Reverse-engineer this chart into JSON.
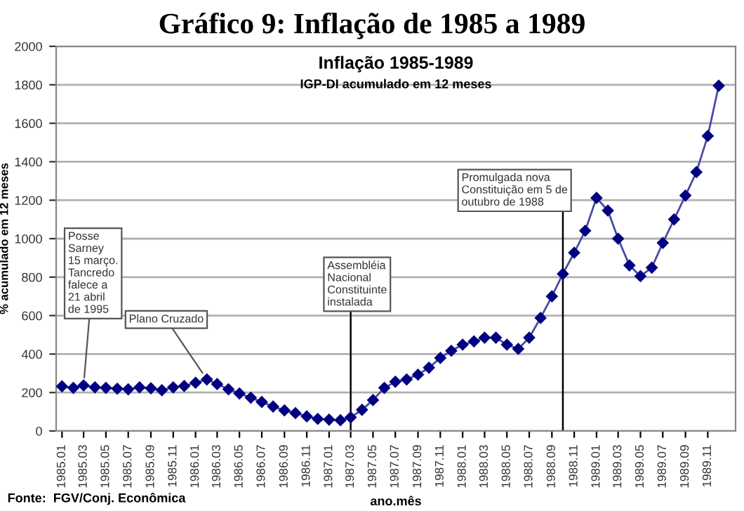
{
  "chart_data": {
    "type": "line",
    "title": "Gráfico 9: Inflação de 1985 a 1989",
    "subtitle": "Inflação 1985-1989",
    "xlabel": "ano.mês",
    "ylabel": "% acumulado em 12 meses",
    "x": [
      "1985-01",
      "1985-02",
      "1985-03",
      "1985-04",
      "1985-05",
      "1985-06",
      "1985-07",
      "1985-08",
      "1985-09",
      "1985-10",
      "1985-11",
      "1985-12",
      "1986-01",
      "1986-02",
      "1986-03",
      "1986-04",
      "1986-05",
      "1986-06",
      "1986-07",
      "1986-08",
      "1986-09",
      "1986-10",
      "1986-11",
      "1986-12",
      "1987-01",
      "1987-02",
      "1987-03",
      "1987-04",
      "1987-05",
      "1987-06",
      "1987-07",
      "1987-08",
      "1987-09",
      "1987-10",
      "1987-11",
      "1987-12",
      "1988-01",
      "1988-02",
      "1988-03",
      "1988-04",
      "1988-05",
      "1988-06",
      "1988-07",
      "1988-08",
      "1988-09",
      "1988-10",
      "1988-11",
      "1988-12",
      "1989-01",
      "1989-02",
      "1989-03",
      "1989-04",
      "1989-05",
      "1989-06",
      "1989-07",
      "1989-08",
      "1989-09",
      "1989-10",
      "1989-11",
      "1989-12"
    ],
    "series": [
      {
        "color": "#000080",
        "values": [
          232,
          224,
          237,
          227,
          224,
          220,
          217,
          227,
          222,
          212,
          227,
          234,
          251,
          268,
          244,
          217,
          195,
          173,
          151,
          127,
          107,
          93,
          76,
          63,
          59,
          56,
          71,
          110,
          161,
          224,
          256,
          268,
          293,
          329,
          380,
          417,
          449,
          466,
          485,
          485,
          449,
          427,
          485,
          588,
          700,
          817,
          927,
          1041,
          1212,
          1146,
          1000,
          861,
          805,
          849,
          978,
          1100,
          1224,
          1346,
          1534,
          1795
        ]
      }
    ],
    "marker": "diamond",
    "line_style": "solid",
    "grid": "y",
    "xlim": [
      "1984-12-16",
      "1990-01-16"
    ],
    "ylim": [
      0,
      2000
    ],
    "yticks": [
      0,
      200,
      400,
      600,
      800,
      1000,
      1200,
      1400,
      1600,
      1800,
      2000
    ],
    "xticks": [
      {
        "value": "1985-01",
        "label": "1985.01"
      },
      {
        "value": "1985-03",
        "label": "1985.03"
      },
      {
        "value": "1985-05",
        "label": "1985.05"
      },
      {
        "value": "1985-07",
        "label": "1985.07"
      },
      {
        "value": "1985-09",
        "label": "1985.09"
      },
      {
        "value": "1985-11",
        "label": "1985.11"
      },
      {
        "value": "1986-01",
        "label": "1986.01"
      },
      {
        "value": "1986-03",
        "label": "1986.03"
      },
      {
        "value": "1986-05",
        "label": "1986.05"
      },
      {
        "value": "1986-07",
        "label": "1986.07"
      },
      {
        "value": "1986-09",
        "label": "1986.09"
      },
      {
        "value": "1986-11",
        "label": "1986.11"
      },
      {
        "value": "1987-01",
        "label": "1987.01"
      },
      {
        "value": "1987-03",
        "label": "1987.03"
      },
      {
        "value": "1987-05",
        "label": "1987.05"
      },
      {
        "value": "1987-07",
        "label": "1987.07"
      },
      {
        "value": "1987-09",
        "label": "1987.09"
      },
      {
        "value": "1987-11",
        "label": "1987.11"
      },
      {
        "value": "1988-01",
        "label": "1988.01"
      },
      {
        "value": "1988-03",
        "label": "1988.03"
      },
      {
        "value": "1988-05",
        "label": "1988.05"
      },
      {
        "value": "1988-07",
        "label": "1988.07"
      },
      {
        "value": "1988-09",
        "label": "1988.09"
      },
      {
        "value": "1988-11",
        "label": "1988.11"
      },
      {
        "value": "1989-01",
        "label": "1989.01"
      },
      {
        "value": "1989-03",
        "label": "1989.03"
      },
      {
        "value": "1989-05",
        "label": "1989.05"
      },
      {
        "value": "1989-07",
        "label": "1989.07"
      },
      {
        "value": "1989-09",
        "label": "1989.09"
      },
      {
        "value": "1989-11",
        "label": "1989.11"
      }
    ],
    "ref_lines": [
      {
        "axis": "x",
        "value": "1987-03",
        "label": "Assembléia\nNacional\nConstituinte\ninstalada",
        "color": "#000000"
      },
      {
        "axis": "x",
        "value": "1988-10",
        "label": "Promulgada nova\nConstituição em 5 de\noutubro de 1988",
        "color": "#000000"
      }
    ],
    "annotations": [
      "IGP-DI acumulado em 12 meses",
      {
        "text": "Posse\nSarney\n15 março.\nTancredo\nfalece a\n21 abril\nde 1995",
        "x": "1985-03",
        "y": 237
      },
      {
        "text": "Plano Cruzado",
        "x": "1986-02",
        "y": 268
      },
      "Fonte:  FGV/Conj. Econômica"
    ]
  }
}
